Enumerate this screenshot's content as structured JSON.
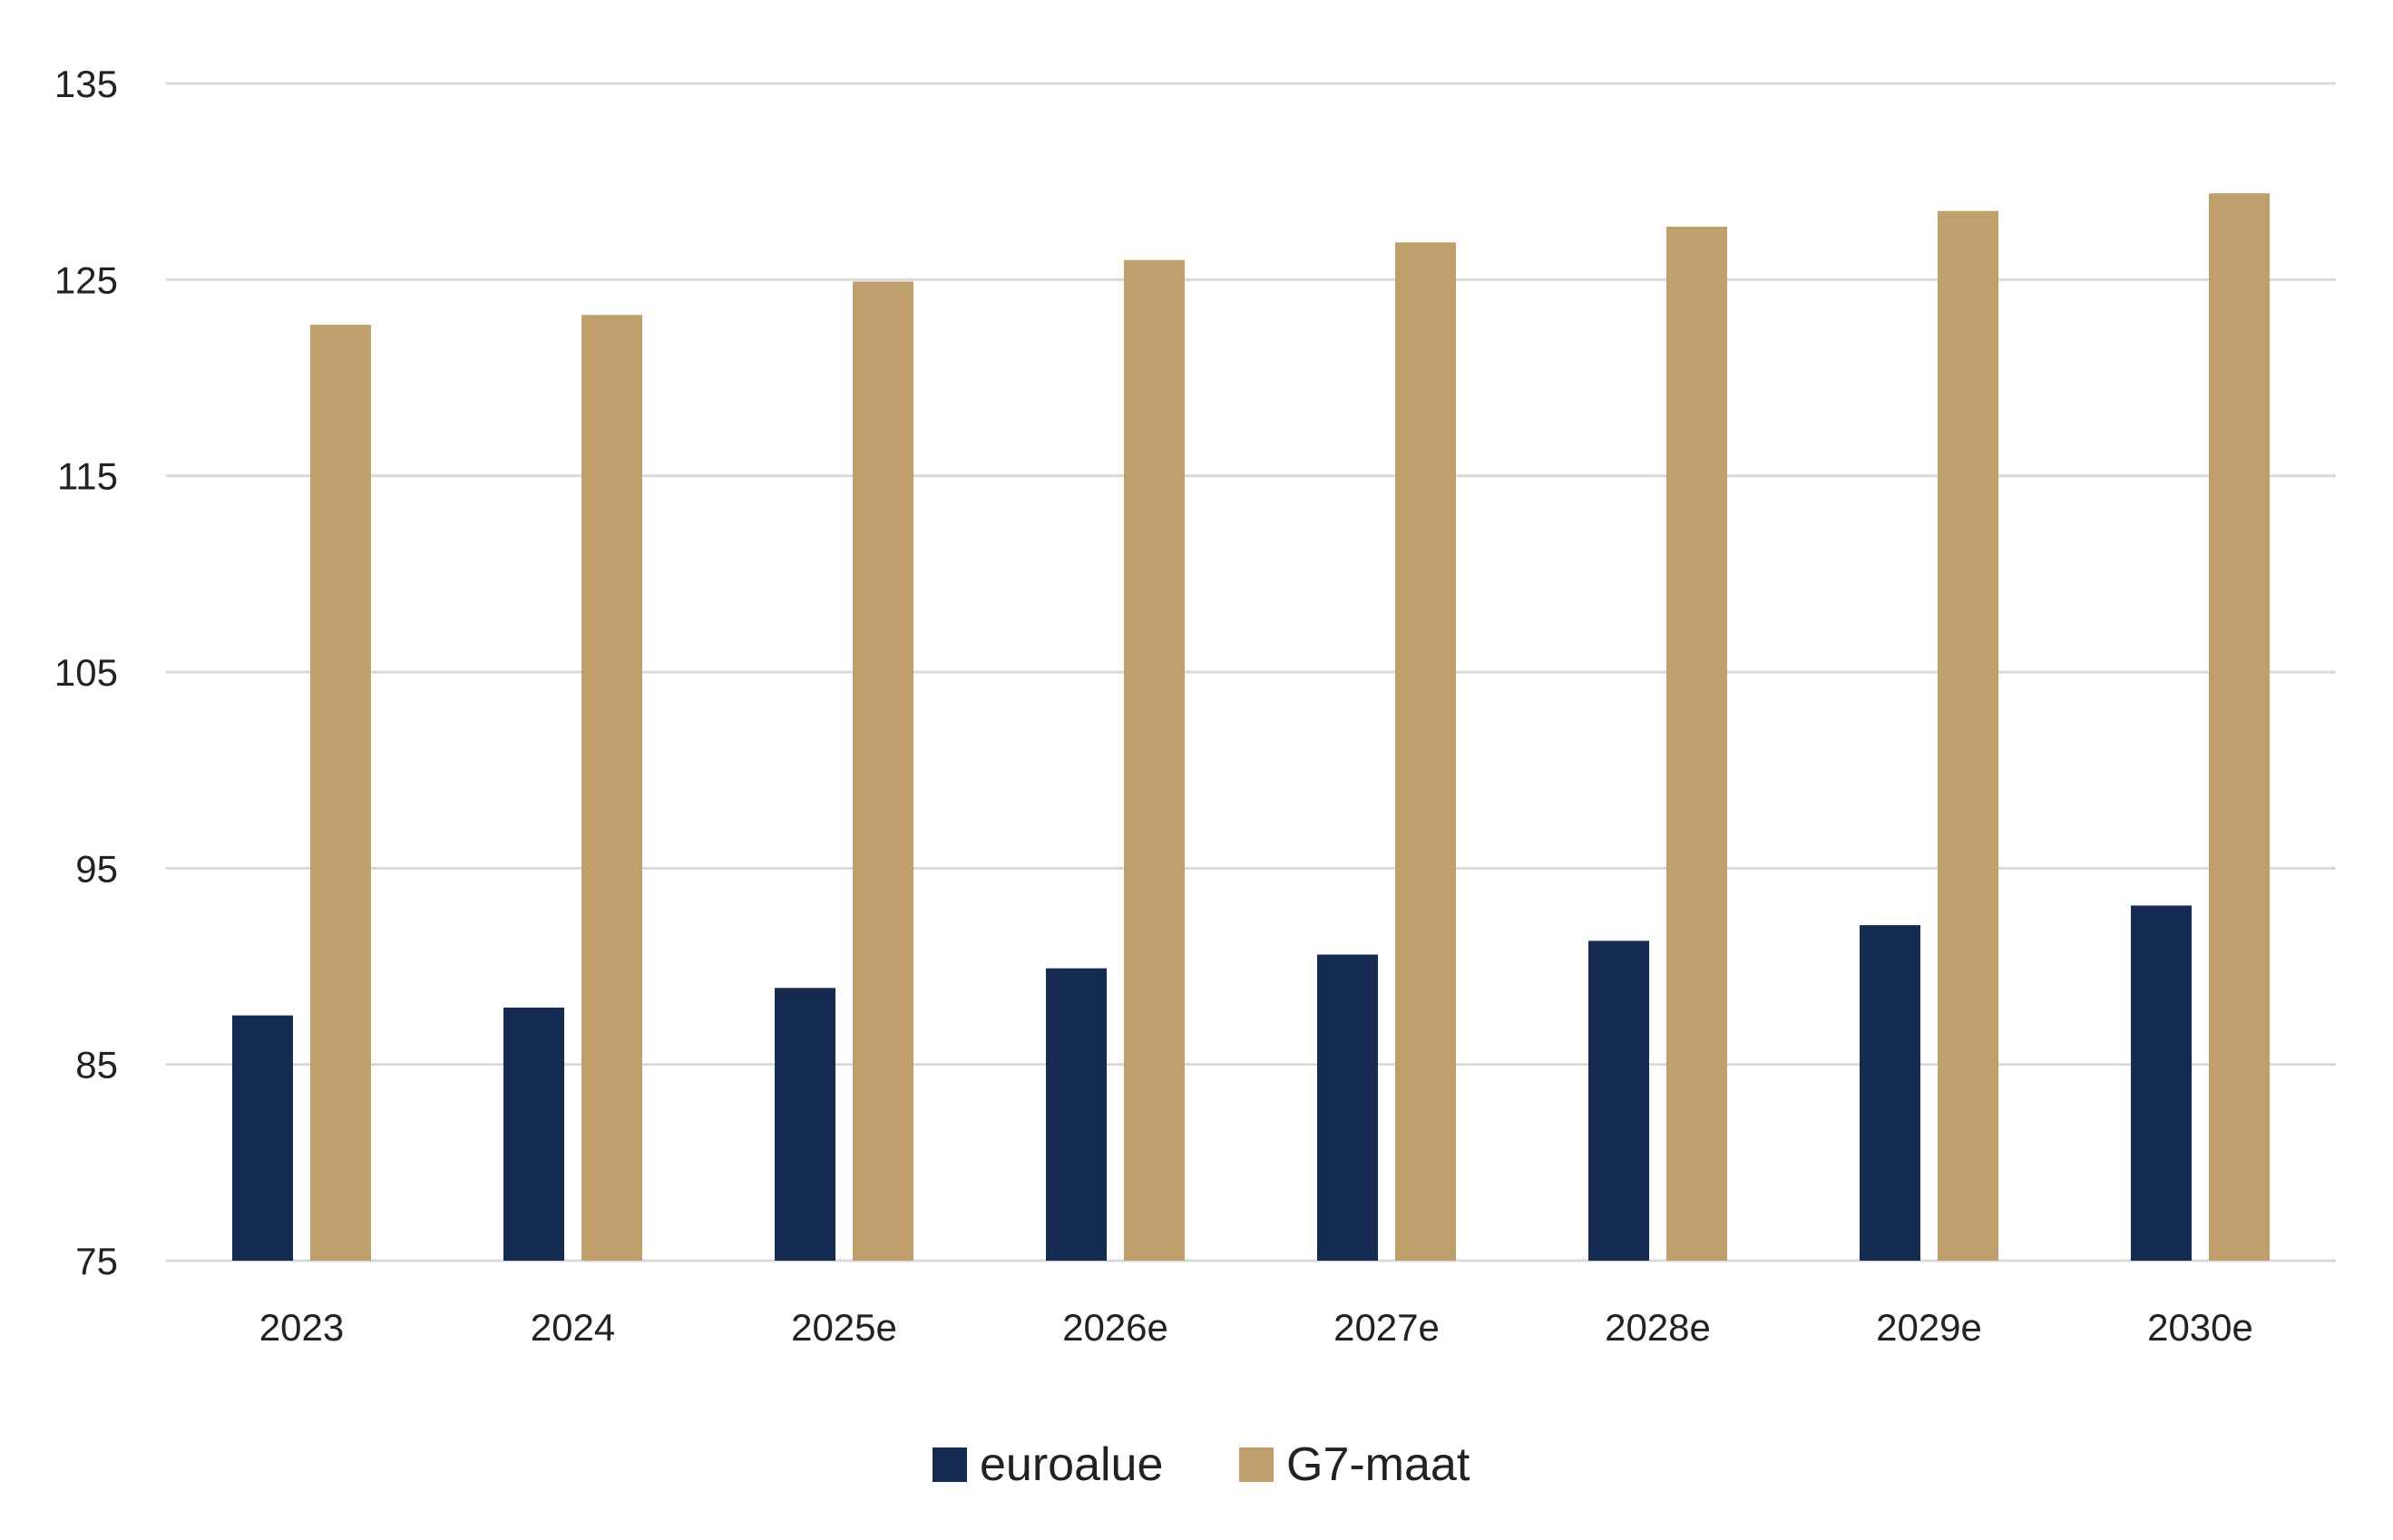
{
  "chart_data": {
    "type": "bar",
    "title": "",
    "xlabel": "",
    "ylabel": "",
    "categories": [
      "2023",
      "2024",
      "2025e",
      "2026e",
      "2027e",
      "2028e",
      "2029e",
      "2030e"
    ],
    "series": [
      {
        "name": "euroalue",
        "color": "#152b52",
        "values": [
          87.5,
          87.9,
          88.9,
          89.9,
          90.6,
          91.3,
          92.1,
          93.1
        ]
      },
      {
        "name": "G7-maat",
        "color": "#bf9f6b",
        "values": [
          122.7,
          123.2,
          124.9,
          126.0,
          126.9,
          127.7,
          128.5,
          129.4
        ]
      }
    ],
    "ylim": [
      75,
      135
    ],
    "yticks": [
      75,
      85,
      95,
      105,
      115,
      125,
      135
    ],
    "grid": true,
    "legend": "bottom-center",
    "gridColor": "#d9d9d9"
  }
}
